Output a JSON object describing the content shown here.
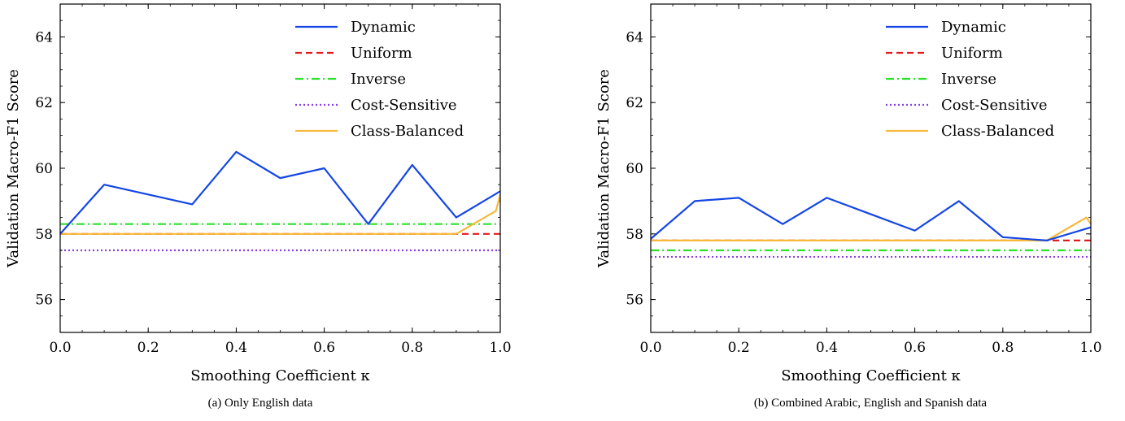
{
  "chart_data": [
    {
      "type": "line",
      "caption": "(a) Only English data",
      "xlabel": "Smoothing Coefficient κ",
      "ylabel": "Validation Macro-F1 Score",
      "xlim": [
        0.0,
        1.0
      ],
      "ylim": [
        55,
        65
      ],
      "xticks": [
        "0.0",
        "0.2",
        "0.4",
        "0.6",
        "0.8",
        "1.0"
      ],
      "yticks": [
        "56",
        "58",
        "60",
        "62",
        "64"
      ],
      "legend_position": "top-right",
      "series": [
        {
          "name": "Dynamic",
          "color": "#1446e6",
          "dash": "solid",
          "x": [
            0.0,
            0.1,
            0.3,
            0.4,
            0.5,
            0.6,
            0.7,
            0.8,
            0.9,
            1.0
          ],
          "y": [
            58.0,
            59.5,
            58.9,
            60.5,
            59.7,
            60.0,
            58.3,
            60.1,
            58.5,
            59.3
          ]
        },
        {
          "name": "Uniform",
          "color": "#e31a1c",
          "dash": "dashed",
          "x": [
            0.0,
            1.0
          ],
          "y": [
            58.0,
            58.0
          ]
        },
        {
          "name": "Inverse",
          "color": "#2ce02c",
          "dash": "dashdot",
          "x": [
            0.0,
            1.0
          ],
          "y": [
            58.3,
            58.3
          ]
        },
        {
          "name": "Cost-Sensitive",
          "color": "#8a3ce6",
          "dash": "dotted",
          "x": [
            0.0,
            1.0
          ],
          "y": [
            57.5,
            57.5
          ]
        },
        {
          "name": "Class-Balanced",
          "color": "#f6b93b",
          "dash": "solid",
          "x": [
            0.0,
            0.9,
            0.99,
            1.0
          ],
          "y": [
            58.0,
            58.0,
            58.7,
            59.2
          ]
        }
      ]
    },
    {
      "type": "line",
      "caption": "(b) Combined Arabic, English and Spanish data",
      "xlabel": "Smoothing Coefficient κ",
      "ylabel": "Validation Macro-F1 Score",
      "xlim": [
        0.0,
        1.0
      ],
      "ylim": [
        55,
        65
      ],
      "xticks": [
        "0.0",
        "0.2",
        "0.4",
        "0.6",
        "0.8",
        "1.0"
      ],
      "yticks": [
        "56",
        "58",
        "60",
        "62",
        "64"
      ],
      "legend_position": "top-right",
      "series": [
        {
          "name": "Dynamic",
          "color": "#1446e6",
          "dash": "solid",
          "x": [
            0.0,
            0.1,
            0.2,
            0.3,
            0.4,
            0.5,
            0.6,
            0.7,
            0.8,
            0.9,
            1.0
          ],
          "y": [
            57.85,
            59.0,
            59.1,
            58.3,
            59.1,
            58.6,
            58.1,
            59.0,
            57.9,
            57.8,
            58.2
          ]
        },
        {
          "name": "Uniform",
          "color": "#e31a1c",
          "dash": "dashed",
          "x": [
            0.0,
            1.0
          ],
          "y": [
            57.8,
            57.8
          ]
        },
        {
          "name": "Inverse",
          "color": "#2ce02c",
          "dash": "dashdot",
          "x": [
            0.0,
            1.0
          ],
          "y": [
            57.5,
            57.5
          ]
        },
        {
          "name": "Cost-Sensitive",
          "color": "#8a3ce6",
          "dash": "dotted",
          "x": [
            0.0,
            1.0
          ],
          "y": [
            57.3,
            57.3
          ]
        },
        {
          "name": "Class-Balanced",
          "color": "#f6b93b",
          "dash": "solid",
          "x": [
            0.0,
            0.9,
            0.99,
            1.0
          ],
          "y": [
            57.8,
            57.8,
            58.5,
            58.3
          ]
        }
      ]
    }
  ]
}
